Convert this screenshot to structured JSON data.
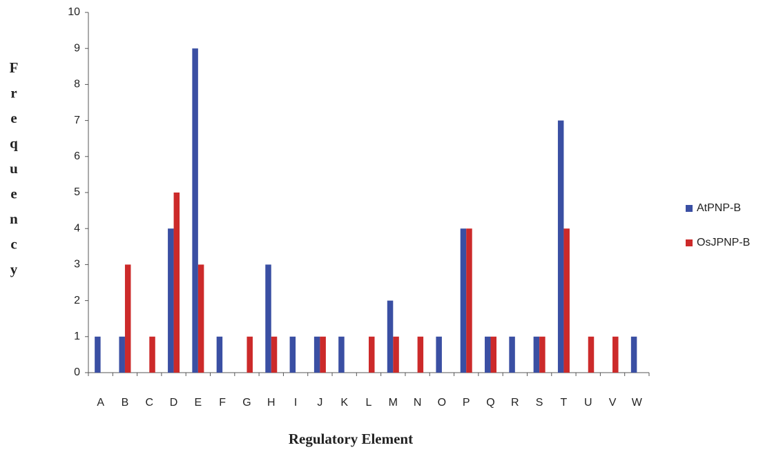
{
  "chart_data": {
    "type": "bar",
    "x_label": "Regulatory Element",
    "y_label": "Frequency",
    "categories": [
      "A",
      "B",
      "C",
      "D",
      "E",
      "F",
      "G",
      "H",
      "I",
      "J",
      "K",
      "L",
      "M",
      "N",
      "O",
      "P",
      "Q",
      "R",
      "S",
      "T",
      "U",
      "V",
      "W"
    ],
    "series": [
      {
        "name": "AtPNP-B",
        "color": "#3a4fa3",
        "values": [
          1,
          1,
          0,
          4,
          9,
          1,
          0,
          3,
          1,
          1,
          1,
          0,
          2,
          0,
          1,
          4,
          1,
          1,
          1,
          7,
          0,
          0,
          1
        ]
      },
      {
        "name": "OsJPNP-B",
        "color": "#cc2a2a",
        "values": [
          0,
          3,
          1,
          5,
          3,
          0,
          1,
          1,
          0,
          1,
          0,
          1,
          1,
          1,
          0,
          4,
          1,
          0,
          1,
          4,
          1,
          1,
          0
        ]
      }
    ],
    "ylim": [
      0,
      10
    ],
    "yticks": [
      0,
      1,
      2,
      3,
      4,
      5,
      6,
      7,
      8,
      9,
      10
    ],
    "legend": "right"
  }
}
